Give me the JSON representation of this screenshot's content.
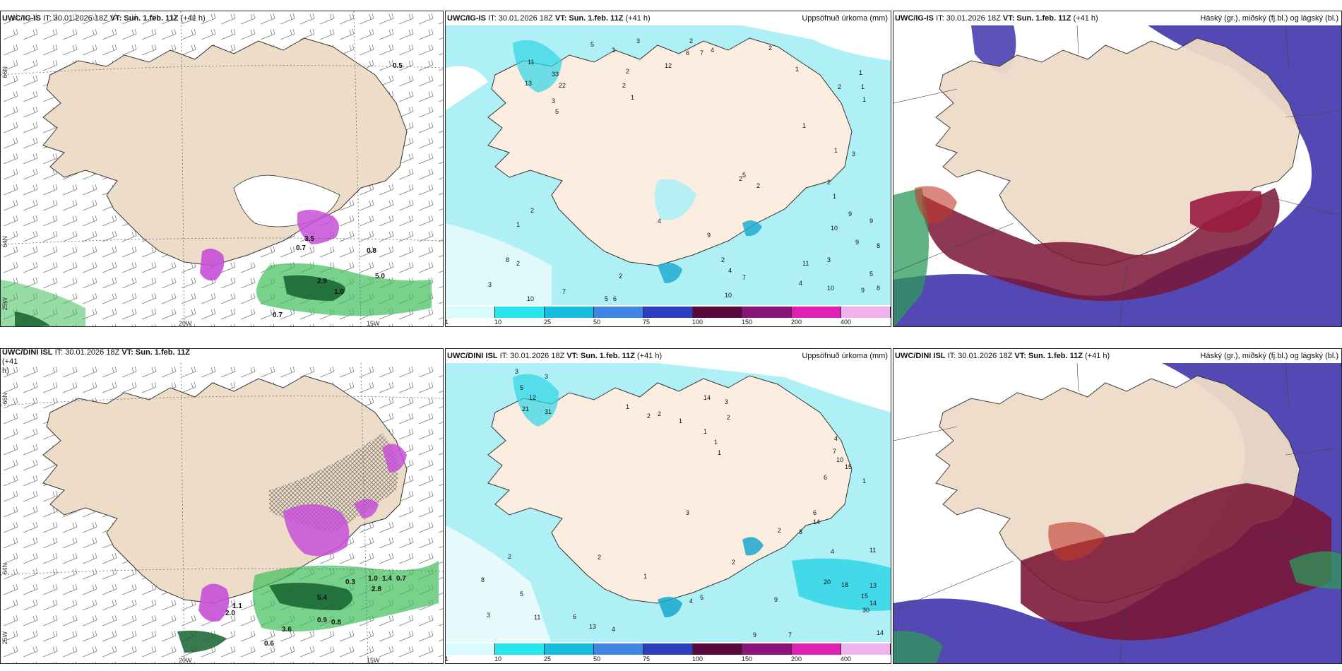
{
  "colors": {
    "land": "#eddcc8",
    "sea": "#ffffff",
    "precip_light": "#aef0f6",
    "precip_mid": "#2fd6e6",
    "precip_strong": "#1aa7cf",
    "cloud_high": "#4b3fb0",
    "cloud_mid": "#7a1535",
    "cloud_low": "#2e9a5a",
    "snow_purple": "#c650d8",
    "green_precip": "#3fbf5a"
  },
  "panels": {
    "wind_top": {
      "model": "UWC/IG-IS",
      "it": "IT: 30.01.2026 18Z",
      "vt_label": "VT:",
      "vt": "Sun. 1.feb. 11Z",
      "lead": "(+41 h)"
    },
    "precip_top": {
      "model": "UWC/IG-IS",
      "it": "IT: 30.01.2026 18Z",
      "vt_label": "VT:",
      "vt": "Sun. 1.feb. 11Z",
      "lead": "(+41 h)",
      "right_title": "Uppsöfnuð úrkoma (mm)"
    },
    "cloud_top": {
      "model": "UWC/IG-IS",
      "it": "IT: 30.01.2026 18Z",
      "vt_label": "VT:",
      "vt": "Sun. 1.feb. 11Z",
      "lead": "(+41 h)",
      "right_title": "Háský (gr.), miðský (fj.bl.) og lágský (bl.)"
    },
    "wind_bottom": {
      "model": "UWC/DINI ISL",
      "it": "IT: 30.01.2026 18Z",
      "vt_label": "VT:",
      "vt": "Sun. 1.feb. 11Z",
      "lead": "(+41",
      "lead2": "h)"
    },
    "precip_bottom": {
      "model": "UWC/DINI ISL",
      "it": "IT: 30.01.2026 18Z",
      "vt_label": "VT:",
      "vt": "Sun. 1.feb. 11Z",
      "lead": "(+41 h)",
      "right_title": "Uppsöfnuð úrkoma (mm)"
    },
    "cloud_bottom": {
      "model": "UWC/DINI ISL",
      "it": "IT: 30.01.2026 18Z",
      "vt_label": "VT:",
      "vt": "Sun. 1.feb. 11Z",
      "lead": "(+41 h)",
      "right_title": "Háský (gr.), miðský (fj.bl.) og lágský (bl.)"
    }
  },
  "axis_labels": {
    "lat66": "66N",
    "lat64": "64N",
    "lon25": "25W",
    "lon20": "20W",
    "lon15": "15W"
  },
  "colorbar": {
    "ticks": [
      "1",
      "10",
      "25",
      "50",
      "75",
      "100",
      "150",
      "200",
      "400"
    ],
    "colors": [
      "#d8fbfd",
      "#26e6ee",
      "#15bde0",
      "#3f86e6",
      "#2b3fc0",
      "#5a0a3a",
      "#8c137a",
      "#e01fb4",
      "#f1b3ee"
    ]
  },
  "wind_top_labels": [
    "0.5",
    "0.8",
    "3.5",
    "0.7",
    "2.9",
    "1.0",
    "5.0",
    "0.7"
  ],
  "wind_bottom_labels": [
    "1.1",
    "2.0",
    "5.4",
    "0.9",
    "0.8",
    "3.6",
    "0.6",
    "1.0",
    "1.4",
    "0.7",
    "2.8",
    "0.3"
  ],
  "precip_top_numbers": [
    "5",
    "3",
    "3",
    "2",
    "6",
    "7",
    "4",
    "11",
    "13",
    "33",
    "22",
    "2",
    "2",
    "1",
    "12",
    "3",
    "5",
    "2",
    "1",
    "2",
    "1",
    "1",
    "1",
    "3",
    "1",
    "2",
    "4",
    "5",
    "9",
    "4",
    "8",
    "2",
    "3",
    "9",
    "8",
    "1",
    "2",
    "10",
    "9",
    "5",
    "11",
    "10",
    "7",
    "4",
    "8",
    "2",
    "3",
    "10",
    "7",
    "5",
    "6",
    "2",
    "1",
    "2",
    "1",
    "2",
    "9",
    "10",
    "9"
  ],
  "precip_bottom_numbers": [
    "3",
    "3",
    "5",
    "12",
    "21",
    "31",
    "1",
    "2",
    "2",
    "1",
    "14",
    "1",
    "3",
    "2",
    "1",
    "1",
    "4",
    "7",
    "10",
    "15",
    "6",
    "1",
    "6",
    "14",
    "3",
    "2",
    "4",
    "11",
    "20",
    "18",
    "13",
    "15",
    "30",
    "14",
    "14",
    "2",
    "8",
    "5",
    "11",
    "3",
    "13",
    "6",
    "4",
    "9",
    "9",
    "7",
    "2",
    "5",
    "4",
    "3",
    "1",
    "2"
  ]
}
